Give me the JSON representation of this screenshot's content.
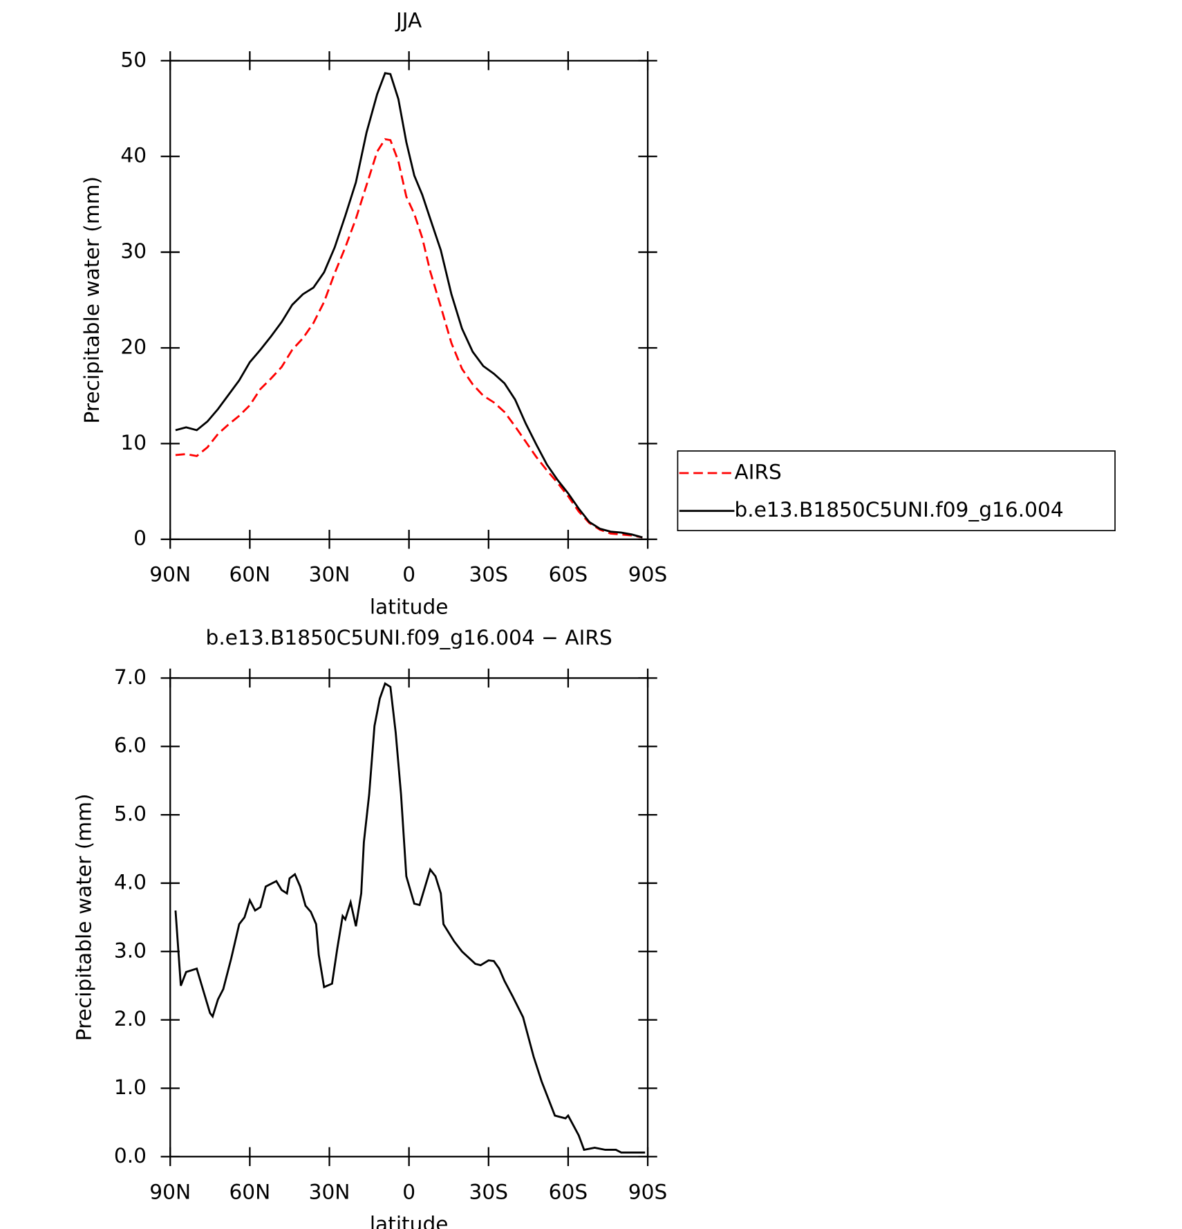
{
  "chart_data": [
    {
      "type": "line",
      "title": "JJA",
      "xlabel": "latitude",
      "ylabel": "Precipitable water (mm)",
      "x": [
        88,
        84,
        80,
        76,
        72,
        68,
        64,
        60,
        56,
        52,
        48,
        44,
        40,
        36,
        32,
        28,
        24,
        20,
        16,
        12,
        9,
        7,
        4,
        1,
        -2,
        -5,
        -8,
        -12,
        -16,
        -20,
        -24,
        -28,
        -32,
        -36,
        -40,
        -44,
        -48,
        -52,
        -56,
        -60,
        -64,
        -68,
        -72,
        -76,
        -80,
        -84,
        -88
      ],
      "series": [
        {
          "name": "AIRS",
          "color": "#ff0000",
          "line_style": "dashed",
          "values": [
            8.8,
            8.9,
            8.7,
            9.6,
            11.0,
            12.0,
            12.9,
            14.0,
            15.7,
            16.8,
            18.0,
            19.8,
            21.0,
            22.6,
            24.8,
            27.8,
            30.5,
            33.5,
            37.0,
            40.5,
            41.8,
            41.7,
            39.5,
            35.8,
            34.0,
            31.5,
            28.0,
            24.3,
            20.5,
            17.8,
            16.2,
            15.0,
            14.3,
            13.3,
            11.8,
            10.2,
            8.6,
            7.2,
            5.9,
            4.5,
            2.9,
            1.7,
            1.0,
            0.6,
            0.5,
            0.4,
            0.2
          ]
        },
        {
          "name": "b.e13.B1850C5UNI.f09_g16.004",
          "color": "#000000",
          "line_style": "solid",
          "values": [
            11.4,
            11.7,
            11.4,
            12.3,
            13.6,
            15.1,
            16.6,
            18.5,
            19.8,
            21.2,
            22.7,
            24.5,
            25.6,
            26.3,
            27.9,
            30.5,
            33.8,
            37.3,
            42.5,
            46.5,
            48.7,
            48.6,
            46.0,
            41.5,
            38.0,
            36.0,
            33.5,
            30.2,
            25.6,
            22.0,
            19.6,
            18.1,
            17.3,
            16.3,
            14.6,
            12.1,
            9.9,
            7.8,
            6.2,
            4.8,
            3.2,
            1.8,
            1.1,
            0.8,
            0.7,
            0.5,
            0.2
          ]
        }
      ],
      "xlim": [
        90,
        -90
      ],
      "xticks": [
        {
          "value": 90,
          "label": "90N"
        },
        {
          "value": 60,
          "label": "60N"
        },
        {
          "value": 30,
          "label": "30N"
        },
        0,
        {
          "value": -30,
          "label": "30S"
        },
        {
          "value": -60,
          "label": "60S"
        },
        {
          "value": -90,
          "label": "90S"
        }
      ],
      "ylim": [
        0,
        50
      ],
      "yticks": [
        0,
        10,
        20,
        30,
        40,
        50
      ],
      "legend": "right"
    },
    {
      "type": "line",
      "title": "b.e13.B1850C5UNI.f09_g16.004 − AIRS",
      "xlabel": "latitude",
      "ylabel": "Precipitable water (mm)",
      "x": [
        88,
        86,
        84,
        80,
        75,
        74,
        72,
        70,
        67,
        64,
        62,
        60,
        58,
        56,
        54,
        50,
        48,
        46,
        45,
        43,
        41,
        39,
        37,
        35,
        34,
        32,
        29,
        27,
        25,
        24,
        22,
        20,
        18,
        17,
        15,
        13,
        11,
        9,
        7,
        5,
        3,
        1,
        -2,
        -4,
        -8,
        -10,
        -12,
        -13,
        -17,
        -20,
        -25,
        -27,
        -30,
        -32,
        -34,
        -36,
        -39,
        -43,
        -47,
        -50,
        -55,
        -59,
        -60,
        -64,
        -66,
        -70,
        -74,
        -78,
        -80,
        -84,
        -87,
        -89
      ],
      "color": "#000000",
      "values": [
        3.6,
        2.5,
        2.7,
        2.75,
        2.1,
        2.05,
        2.3,
        2.45,
        2.9,
        3.4,
        3.5,
        3.75,
        3.6,
        3.65,
        3.95,
        4.03,
        3.9,
        3.85,
        4.07,
        4.13,
        3.95,
        3.67,
        3.58,
        3.4,
        2.95,
        2.48,
        2.53,
        3.05,
        3.52,
        3.47,
        3.72,
        3.37,
        3.85,
        4.6,
        5.3,
        6.3,
        6.7,
        6.92,
        6.87,
        6.2,
        5.3,
        4.1,
        3.7,
        3.68,
        4.2,
        4.1,
        3.85,
        3.4,
        3.15,
        3.0,
        2.82,
        2.8,
        2.87,
        2.86,
        2.75,
        2.57,
        2.35,
        2.04,
        1.46,
        1.1,
        0.6,
        0.56,
        0.6,
        0.31,
        0.1,
        0.13,
        0.1,
        0.1,
        0.06,
        0.06,
        0.06,
        0.06
      ],
      "xlim": [
        90,
        -90
      ],
      "xticks": [
        {
          "value": 90,
          "label": "90N"
        },
        {
          "value": 60,
          "label": "60N"
        },
        {
          "value": 30,
          "label": "30N"
        },
        0,
        {
          "value": -30,
          "label": "30S"
        },
        {
          "value": -60,
          "label": "60S"
        },
        {
          "value": -90,
          "label": "90S"
        }
      ],
      "ylim": [
        0,
        7
      ],
      "yticks": [
        {
          "value": 0,
          "label": "0.0"
        },
        {
          "value": 1,
          "label": "1.0"
        },
        {
          "value": 2,
          "label": "2.0"
        },
        {
          "value": 3,
          "label": "3.0"
        },
        {
          "value": 4,
          "label": "4.0"
        },
        {
          "value": 5,
          "label": "5.0"
        },
        {
          "value": 6,
          "label": "6.0"
        },
        {
          "value": 7,
          "label": "7.0"
        }
      ]
    }
  ]
}
